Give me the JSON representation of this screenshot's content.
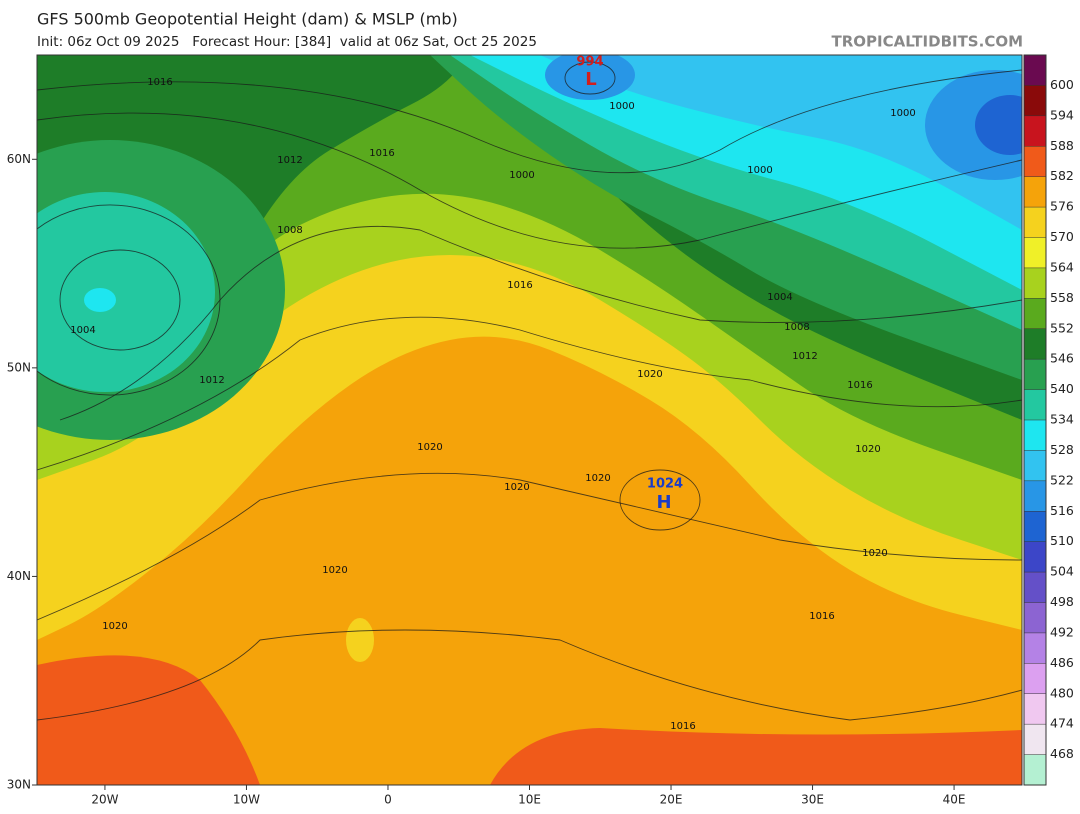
{
  "map": {
    "title": "GFS 500mb Geopotential Height (dam) & MSLP (mb)",
    "subtitle": "Init: 06z Oct 09 2025   Forecast Hour: [384]  valid at 06z Sat, Oct 25 2025",
    "source": "TROPICALTIDBITS.COM",
    "xlim": [
      -24.8,
      44.8
    ],
    "ylim": [
      30,
      65
    ],
    "xticks": [
      {
        "value": -20,
        "label": "20W"
      },
      {
        "value": -10,
        "label": "10W"
      },
      0,
      {
        "value": 10,
        "label": "10E"
      },
      {
        "value": 20,
        "label": "20E"
      },
      {
        "value": 30,
        "label": "30E"
      },
      {
        "value": 40,
        "label": "40E"
      }
    ],
    "yticks": [
      {
        "value": 30,
        "label": "30N"
      },
      {
        "value": 40,
        "label": "40N"
      },
      {
        "value": 50,
        "label": "50N"
      },
      {
        "value": 60,
        "label": "60N"
      }
    ],
    "colorbar": {
      "labels": [
        600,
        594,
        588,
        582,
        576,
        570,
        564,
        558,
        552,
        546,
        540,
        534,
        528,
        522,
        516,
        510,
        504,
        498,
        492,
        486,
        480,
        474,
        468
      ],
      "colors": [
        "#6a0a50",
        "#8a0a0a",
        "#c8141e",
        "#f05a1a",
        "#f5a30a",
        "#f5d21e",
        "#f0f028",
        "#a8d21e",
        "#5aaa1e",
        "#1e7d28",
        "#28a050",
        "#23c8a0",
        "#1ee6f0",
        "#32c3f0",
        "#2896e6",
        "#1e64d2",
        "#3c46c8",
        "#6450c8",
        "#8c64d2",
        "#b482e6",
        "#dca0f0",
        "#f0c8f0",
        "#f0e6f0",
        "#b4f0d2"
      ]
    },
    "contour_labels": [
      "1016",
      "1012",
      "1016",
      "1000",
      "1000",
      "1000",
      "1000",
      "1008",
      "1004",
      "1008",
      "1012",
      "1016",
      "1016",
      "1004",
      "1012",
      "1020",
      "1020",
      "1020",
      "1020",
      "1020",
      "1020",
      "1020",
      "1016",
      "1020",
      "1016"
    ],
    "high": {
      "letter": "H",
      "pressure": "1024"
    },
    "low": {
      "letter": "L",
      "pressure": "994"
    }
  }
}
